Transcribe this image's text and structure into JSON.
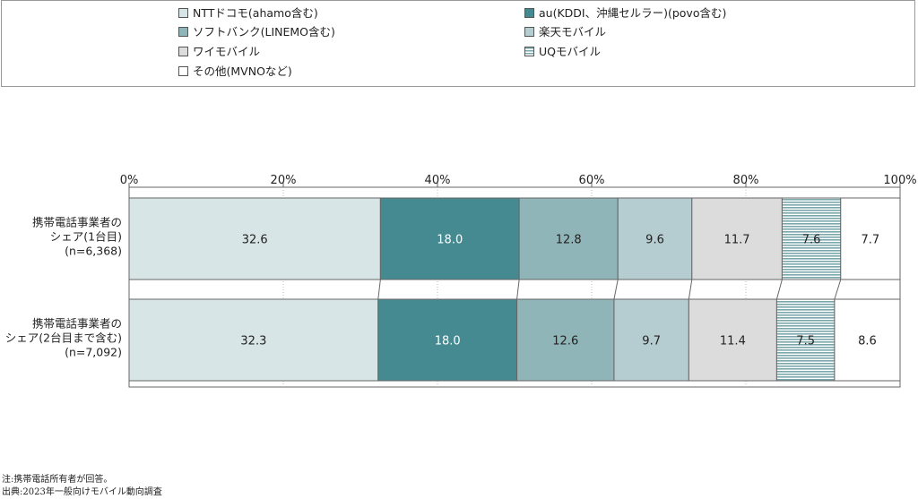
{
  "legend": [
    {
      "label": "NTTドコモ(ahamo含む)",
      "color": "#d7e5e6",
      "pattern": "solid"
    },
    {
      "label": "au(KDDI、沖縄セルラー)(povo含む)",
      "color": "#468a91",
      "pattern": "solid"
    },
    {
      "label": "ソフトバンク(LINEMO含む)",
      "color": "#8fb5b8",
      "pattern": "solid"
    },
    {
      "label": "楽天モバイル",
      "color": "#b5cdd0",
      "pattern": "solid"
    },
    {
      "label": "ワイモバイル",
      "color": "#dcdcdc",
      "pattern": "solid"
    },
    {
      "label": "UQモバイル",
      "color": "#8fb5b8",
      "pattern": "stripes"
    },
    {
      "label": "その他(MVNOなど)",
      "color": "#ffffff",
      "pattern": "solid"
    }
  ],
  "chart_data": {
    "type": "bar",
    "orientation": "horizontal-stacked-100",
    "categories": [
      [
        "携帯電話事業者の",
        "シェア(1台目)",
        "(n=6,368)"
      ],
      [
        "携帯電話事業者の",
        "シェア(2台目まで含む)",
        "(n=7,092)"
      ]
    ],
    "series": [
      {
        "name": "NTTドコモ(ahamo含む)",
        "values": [
          32.6,
          32.3
        ]
      },
      {
        "name": "au(KDDI、沖縄セルラー)(povo含む)",
        "values": [
          18.0,
          18.0
        ]
      },
      {
        "name": "ソフトバンク(LINEMO含む)",
        "values": [
          12.8,
          12.6
        ]
      },
      {
        "name": "楽天モバイル",
        "values": [
          9.6,
          9.7
        ]
      },
      {
        "name": "ワイモバイル",
        "values": [
          11.7,
          11.4
        ]
      },
      {
        "name": "UQモバイル",
        "values": [
          7.6,
          7.5
        ]
      },
      {
        "name": "その他(MVNOなど)",
        "values": [
          7.7,
          8.6
        ]
      }
    ],
    "value_labels": [
      [
        "32.6",
        "18.0",
        "12.8",
        "9.6",
        "11.7",
        "7.6",
        "7.7"
      ],
      [
        "32.3",
        "18.0",
        "12.6",
        "9.7",
        "11.4",
        "7.5",
        "8.6"
      ]
    ],
    "xticks": [
      "0%",
      "20%",
      "40%",
      "60%",
      "80%",
      "100%"
    ],
    "xlim": [
      0,
      100
    ],
    "grid": true,
    "legend_position": "top"
  },
  "notes": [
    "注:携帯電話所有者が回答。",
    "出典:2023年一般向けモバイル動向調査"
  ]
}
